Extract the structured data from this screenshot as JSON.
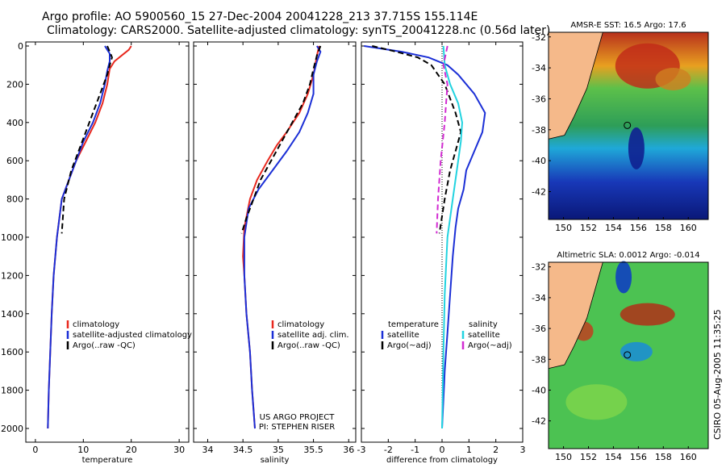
{
  "header": {
    "title_line1": "Argo profile: AO 5900560_15 27-Dec-2004 20041228_213 37.715S 155.114E",
    "title_line2": "Climatology: CARS2000. Satellite-adjusted climatology: synTS_20041228.nc (0.56d later)"
  },
  "side_label": "CSIRO 05-Aug-2005 11:35:25",
  "project_credit": [
    "US ARGO PROJECT",
    "PI: STEPHEN RISER"
  ],
  "colors": {
    "climatology": "#e8281e",
    "satellite": "#1b2fd6",
    "argo": "#000000",
    "sat_salinity": "#22d3e0",
    "argo_salinity": "#d22bd2",
    "land": "#f5b98a"
  },
  "chart_data": [
    {
      "type": "line",
      "xlabel": "temperature",
      "ylim": [
        2000,
        0
      ],
      "xlim": [
        -2,
        32
      ],
      "xticks": [
        0,
        10,
        20,
        30
      ],
      "yticks": [
        0,
        200,
        400,
        600,
        800,
        1000,
        1200,
        1400,
        1600,
        1800,
        2000
      ],
      "legend": [
        "climatology",
        "satellite-adjusted climatology",
        "Argo(..raw -QC)"
      ],
      "series": [
        {
          "name": "climatology",
          "x": [
            20,
            19.5,
            18,
            16.5,
            15.5,
            15,
            14,
            12.5,
            10.5,
            8.5,
            7,
            5.5,
            4.5,
            3.8,
            3.4,
            3.1,
            2.8,
            2.6
          ],
          "y": [
            0,
            20,
            50,
            80,
            120,
            200,
            300,
            400,
            500,
            600,
            700,
            800,
            1000,
            1200,
            1400,
            1600,
            1800,
            2000
          ]
        },
        {
          "name": "satellite-adjusted climatology",
          "x": [
            14.5,
            15.5,
            15.5,
            15,
            14.5,
            13.5,
            12,
            10,
            8.5,
            7,
            5.5,
            4.5,
            3.8,
            3.4,
            3.1,
            2.8,
            2.6
          ],
          "y": [
            0,
            40,
            80,
            130,
            200,
            300,
            400,
            500,
            600,
            700,
            800,
            1000,
            1200,
            1400,
            1600,
            1800,
            2000
          ]
        },
        {
          "name": "Argo(..raw -QC)",
          "x": [
            15,
            15.5,
            16,
            15.5,
            15,
            13.5,
            12,
            10.5,
            9,
            7.5,
            6,
            5.5
          ],
          "y": [
            0,
            30,
            60,
            100,
            150,
            250,
            350,
            450,
            550,
            650,
            800,
            980
          ]
        }
      ]
    },
    {
      "type": "line",
      "xlabel": "salinity",
      "ylim": [
        2000,
        0
      ],
      "xlim": [
        33.8,
        36.1
      ],
      "xticks": [
        34,
        34.5,
        35,
        35.5,
        36
      ],
      "legend": [
        "climatology",
        "satellite adj. clim.",
        "Argo(..raw -QC)"
      ],
      "series": [
        {
          "name": "climatology",
          "x": [
            35.58,
            35.55,
            35.5,
            35.42,
            35.3,
            35.12,
            34.98,
            34.85,
            34.7,
            34.6,
            34.52,
            34.5,
            34.52,
            34.55,
            34.6,
            34.63,
            34.65,
            34.67
          ],
          "y": [
            0,
            50,
            150,
            250,
            350,
            450,
            520,
            600,
            700,
            800,
            950,
            1100,
            1200,
            1400,
            1600,
            1800,
            1900,
            2000
          ]
        },
        {
          "name": "satellite adj. clim.",
          "x": [
            35.55,
            35.6,
            35.55,
            35.5,
            35.5,
            35.42,
            35.3,
            35.12,
            34.92,
            34.72,
            34.58,
            34.52,
            34.52,
            34.55,
            34.6,
            34.63,
            34.67
          ],
          "y": [
            0,
            30,
            80,
            150,
            250,
            350,
            450,
            550,
            650,
            750,
            850,
            1000,
            1200,
            1400,
            1600,
            1800,
            2000
          ]
        },
        {
          "name": "Argo(..raw -QC)",
          "x": [
            35.6,
            35.55,
            35.5,
            35.45,
            35.35,
            35.2,
            35.05,
            34.9,
            34.75,
            34.65,
            34.55,
            34.48
          ],
          "y": [
            0,
            50,
            120,
            200,
            300,
            400,
            500,
            600,
            700,
            800,
            900,
            980
          ]
        }
      ]
    },
    {
      "type": "line",
      "xlabel": "difference from climatology",
      "ylim": [
        2000,
        0
      ],
      "xlim": [
        -3,
        3
      ],
      "xticks": [
        -3,
        -2,
        -1,
        0,
        1,
        2,
        3
      ],
      "legend_left_title": "temperature",
      "legend_right_title": "salinity",
      "legend_left": [
        "satellite",
        "Argo(~adj)"
      ],
      "legend_right": [
        "satellite",
        "Argo(~adj)"
      ],
      "series": [
        {
          "name": "temperature satellite",
          "x": [
            -2.9,
            -1.5,
            -0.5,
            0.2,
            0.6,
            1.2,
            1.6,
            1.5,
            1.2,
            0.9,
            0.8,
            0.6,
            0.5,
            0.4,
            0.3,
            0.2,
            0.1,
            0.05,
            0
          ],
          "y": [
            0,
            30,
            60,
            100,
            150,
            250,
            350,
            450,
            550,
            650,
            750,
            850,
            950,
            1100,
            1300,
            1500,
            1700,
            1850,
            2000
          ]
        },
        {
          "name": "temperature Argo(~adj)",
          "x": [
            -2.6,
            -1.7,
            -0.9,
            -0.4,
            0.1,
            0.5,
            0.7,
            0.5,
            0.3,
            0.1,
            -0.1
          ],
          "y": [
            0,
            30,
            60,
            100,
            200,
            350,
            450,
            550,
            650,
            800,
            980
          ]
        },
        {
          "name": "salinity satellite",
          "x": [
            0.05,
            0.1,
            0.3,
            0.6,
            0.75,
            0.7,
            0.6,
            0.4,
            0.2,
            0.1,
            0.05,
            0
          ],
          "y": [
            0,
            100,
            200,
            300,
            400,
            500,
            600,
            800,
            1000,
            1300,
            1600,
            2000
          ]
        },
        {
          "name": "salinity Argo(~adj)",
          "x": [
            0.2,
            0.05,
            0.2,
            0.1,
            -0.05,
            -0.15,
            -0.2
          ],
          "y": [
            0,
            100,
            200,
            400,
            600,
            800,
            980
          ]
        }
      ]
    },
    {
      "type": "heatmap",
      "title": "AMSR-E SST: 16.5 Argo: 17.6",
      "xticks": [
        150,
        152,
        154,
        156,
        158,
        160
      ],
      "yticks": [
        -32,
        -34,
        -36,
        -38,
        -40,
        -42
      ],
      "xlim": [
        148.8,
        161.6
      ],
      "ylim": [
        -43.8,
        -31.7
      ],
      "float_position": {
        "lon": 155.114,
        "lat": -37.715
      }
    },
    {
      "type": "heatmap",
      "title": "Altimetric SLA: 0.0012 Argo: -0.014",
      "xticks": [
        150,
        152,
        154,
        156,
        158,
        160
      ],
      "yticks": [
        -32,
        -34,
        -36,
        -38,
        -40,
        -42
      ],
      "xlim": [
        148.8,
        161.6
      ],
      "ylim": [
        -43.8,
        -31.7
      ],
      "float_position": {
        "lon": 155.114,
        "lat": -37.715
      }
    }
  ]
}
